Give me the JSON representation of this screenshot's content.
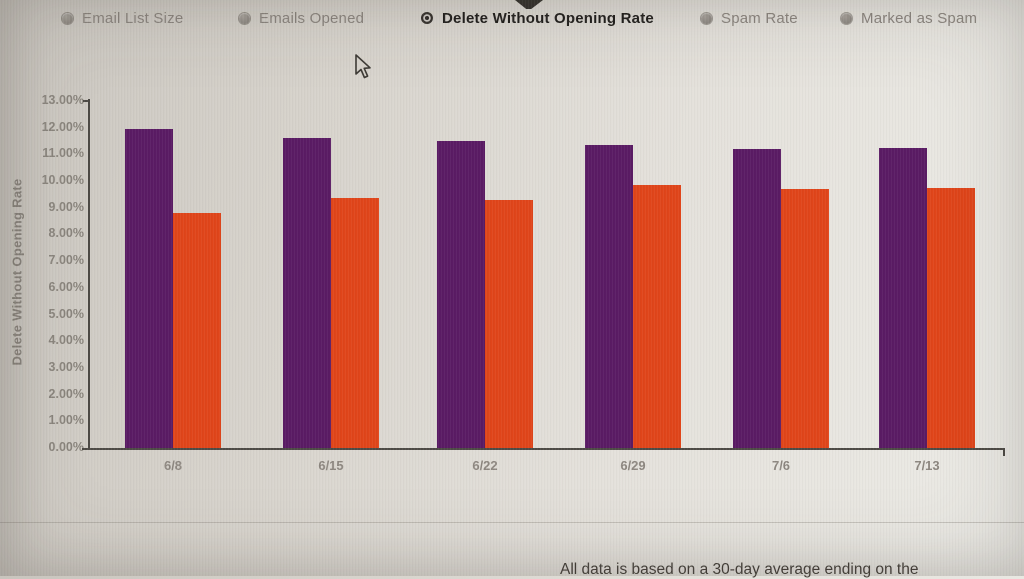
{
  "tabs": {
    "items": [
      {
        "label": "Email List Size",
        "selected": false
      },
      {
        "label": "Emails Opened",
        "selected": false
      },
      {
        "label": "Delete Without Opening Rate",
        "selected": true
      },
      {
        "label": "Spam Rate",
        "selected": false
      },
      {
        "label": "Marked as Spam",
        "selected": false
      }
    ]
  },
  "chart_data": {
    "type": "bar",
    "title": "",
    "xlabel": "",
    "ylabel": "Delete Without Opening Rate",
    "ylim": [
      0,
      13
    ],
    "ytick_step": 1,
    "ytick_labels": [
      "0.00%",
      "1.00%",
      "2.00%",
      "3.00%",
      "4.00%",
      "5.00%",
      "6.00%",
      "7.00%",
      "8.00%",
      "9.00%",
      "10.00%",
      "11.00%",
      "12.00%",
      "13.00%"
    ],
    "categories": [
      "6/8",
      "6/15",
      "6/22",
      "6/29",
      "7/6",
      "7/13"
    ],
    "series": [
      {
        "name": "purple-bars",
        "color": "#5a1b64",
        "values": [
          11.95,
          11.6,
          11.5,
          11.35,
          11.2,
          11.25
        ]
      },
      {
        "name": "orange-bars",
        "color": "#e0451a",
        "values": [
          8.8,
          9.35,
          9.3,
          9.85,
          9.7,
          9.75
        ]
      }
    ],
    "grid": false,
    "legend_position": "none"
  },
  "footer": {
    "note_fragment": "All data is based on a 30-day average ending on the"
  },
  "colors": {
    "purple": "#5a1b64",
    "orange": "#e0451a",
    "axis": "#4d4a45",
    "muted_text": "#8b867e",
    "selected_text": "#22201d"
  }
}
